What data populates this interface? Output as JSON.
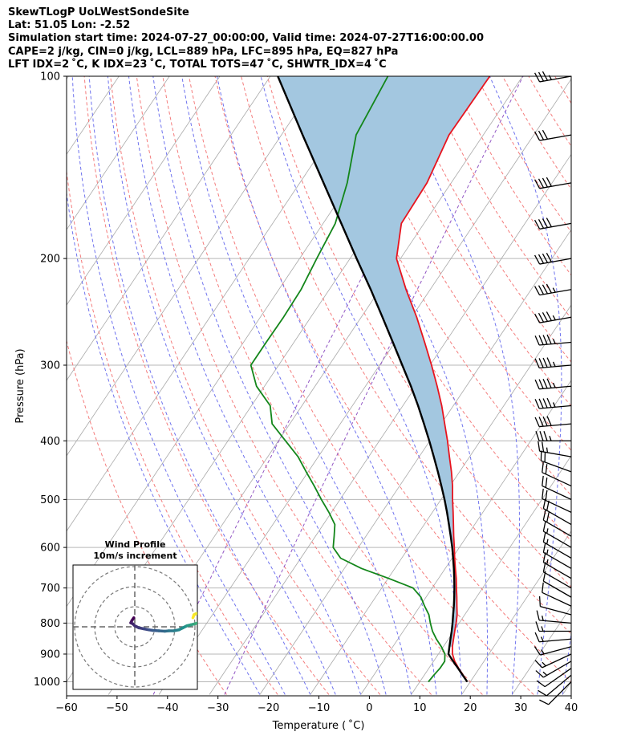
{
  "header": {
    "line1": "SkewTLogP UoLWestSondeSite",
    "line2": "Lat: 51.05   Lon: -2.52",
    "line3": "Simulation start time: 2024-07-27_00:00:00, Valid time: 2024-07-27T16:00:00.00",
    "line4": "CAPE=2 j/kg, CIN=0 j/kg, LCL=889 hPa, LFC=895 hPa, EQ=827 hPa",
    "line5": "LFT IDX=2 ˚C, K IDX=23 ˚C, TOTAL TOTS=47 ˚C, SHWTR_IDX=4 ˚C"
  },
  "chart_data": {
    "type": "skew-t log-p",
    "xlabel": "Temperature ( ˚C)",
    "ylabel": "Pressure (hPa)",
    "xlim": [
      -60,
      40
    ],
    "ylim": [
      1050,
      100
    ],
    "x_ticks": [
      "−60",
      "−50",
      "−40",
      "−30",
      "−20",
      "−10",
      "0",
      "10",
      "20",
      "30",
      "40"
    ],
    "y_ticks": [
      "100",
      "200",
      "300",
      "400",
      "500",
      "600",
      "700",
      "800",
      "900",
      "1000"
    ],
    "temperature": {
      "color": "#e8141e",
      "points": [
        [
          19.4,
          1000
        ],
        [
          17.7,
          975
        ],
        [
          15.9,
          950
        ],
        [
          14.2,
          925
        ],
        [
          12.8,
          900
        ],
        [
          11.8,
          875
        ],
        [
          11.0,
          850
        ],
        [
          10.2,
          825
        ],
        [
          9.4,
          800
        ],
        [
          8.5,
          775
        ],
        [
          7.3,
          750
        ],
        [
          6.1,
          725
        ],
        [
          4.8,
          700
        ],
        [
          3.5,
          675
        ],
        [
          2.0,
          650
        ],
        [
          0.5,
          625
        ],
        [
          -1.0,
          600
        ],
        [
          -2.6,
          575
        ],
        [
          -4.2,
          550
        ],
        [
          -5.9,
          525
        ],
        [
          -7.7,
          500
        ],
        [
          -9.5,
          475
        ],
        [
          -11.6,
          450
        ],
        [
          -14.0,
          425
        ],
        [
          -16.5,
          400
        ],
        [
          -19.3,
          375
        ],
        [
          -22.3,
          350
        ],
        [
          -25.8,
          325
        ],
        [
          -29.7,
          300
        ],
        [
          -34.1,
          275
        ],
        [
          -39.0,
          250
        ],
        [
          -44.8,
          225
        ],
        [
          -50.8,
          200
        ],
        [
          -54.5,
          175
        ],
        [
          -54.8,
          150
        ],
        [
          -56.8,
          125
        ],
        [
          -56.5,
          100
        ]
      ]
    },
    "dewpoint": {
      "color": "#13861a",
      "points": [
        [
          11.7,
          1000
        ],
        [
          11.9,
          975
        ],
        [
          12.2,
          950
        ],
        [
          12.2,
          925
        ],
        [
          11.3,
          900
        ],
        [
          9.6,
          875
        ],
        [
          7.6,
          850
        ],
        [
          5.8,
          825
        ],
        [
          4.3,
          800
        ],
        [
          2.9,
          775
        ],
        [
          0.9,
          750
        ],
        [
          -1.0,
          725
        ],
        [
          -3.8,
          700
        ],
        [
          -9.9,
          675
        ],
        [
          -16.6,
          650
        ],
        [
          -22.1,
          625
        ],
        [
          -25.0,
          600
        ],
        [
          -26.3,
          575
        ],
        [
          -27.7,
          550
        ],
        [
          -30.5,
          525
        ],
        [
          -33.7,
          500
        ],
        [
          -36.9,
          475
        ],
        [
          -40.4,
          450
        ],
        [
          -44.0,
          425
        ],
        [
          -48.6,
          400
        ],
        [
          -53.5,
          375
        ],
        [
          -56.3,
          350
        ],
        [
          -61.6,
          325
        ],
        [
          -65.5,
          300
        ],
        [
          -65.5,
          275
        ],
        [
          -65.4,
          250
        ],
        [
          -65.6,
          225
        ],
        [
          -66.6,
          200
        ],
        [
          -67.6,
          175
        ],
        [
          -70.6,
          150
        ],
        [
          -75.2,
          125
        ],
        [
          -76.7,
          100
        ]
      ]
    },
    "parcel": {
      "color": "#000000",
      "points": [
        [
          19.4,
          1000
        ],
        [
          17.6,
          975
        ],
        [
          15.8,
          950
        ],
        [
          13.9,
          925
        ],
        [
          12.0,
          900
        ],
        [
          11.2,
          875
        ],
        [
          10.4,
          850
        ],
        [
          9.6,
          825
        ],
        [
          8.7,
          800
        ],
        [
          7.7,
          775
        ],
        [
          6.7,
          750
        ],
        [
          5.6,
          725
        ],
        [
          4.4,
          700
        ],
        [
          3.1,
          675
        ],
        [
          1.7,
          650
        ],
        [
          0.2,
          625
        ],
        [
          -1.4,
          600
        ],
        [
          -3.2,
          575
        ],
        [
          -5.1,
          550
        ],
        [
          -7.1,
          525
        ],
        [
          -9.3,
          500
        ],
        [
          -11.7,
          475
        ],
        [
          -14.3,
          450
        ],
        [
          -17.1,
          425
        ],
        [
          -20.1,
          400
        ],
        [
          -23.4,
          375
        ],
        [
          -27.0,
          350
        ],
        [
          -31.0,
          325
        ],
        [
          -35.5,
          300
        ],
        [
          -40.4,
          275
        ],
        [
          -45.8,
          250
        ],
        [
          -51.8,
          225
        ],
        [
          -58.7,
          200
        ],
        [
          -66.4,
          175
        ],
        [
          -75.3,
          150
        ],
        [
          -85.8,
          125
        ],
        [
          -98.5,
          100
        ]
      ]
    },
    "colors": {
      "cape_fill": "#a3c7e0",
      "isotherm": "#a9a9a9",
      "dry_adiabat": "#f47c7c",
      "moist_adiabat": "#6f73ee",
      "mixing_ratio": "#9256c4",
      "grid": "#b7b7b7"
    },
    "wind_barbs": [
      {
        "p": 100,
        "speed_kt": 35,
        "dir_deg": 260
      },
      {
        "p": 125,
        "speed_kt": 30,
        "dir_deg": 260
      },
      {
        "p": 150,
        "speed_kt": 40,
        "dir_deg": 260
      },
      {
        "p": 175,
        "speed_kt": 40,
        "dir_deg": 260
      },
      {
        "p": 200,
        "speed_kt": 40,
        "dir_deg": 260
      },
      {
        "p": 225,
        "speed_kt": 45,
        "dir_deg": 260
      },
      {
        "p": 250,
        "speed_kt": 45,
        "dir_deg": 260
      },
      {
        "p": 275,
        "speed_kt": 45,
        "dir_deg": 265
      },
      {
        "p": 300,
        "speed_kt": 45,
        "dir_deg": 265
      },
      {
        "p": 325,
        "speed_kt": 45,
        "dir_deg": 265
      },
      {
        "p": 350,
        "speed_kt": 45,
        "dir_deg": 265
      },
      {
        "p": 375,
        "speed_kt": 40,
        "dir_deg": 265
      },
      {
        "p": 400,
        "speed_kt": 35,
        "dir_deg": 270
      },
      {
        "p": 425,
        "speed_kt": 25,
        "dir_deg": 280
      },
      {
        "p": 450,
        "speed_kt": 20,
        "dir_deg": 290
      },
      {
        "p": 475,
        "speed_kt": 20,
        "dir_deg": 295
      },
      {
        "p": 500,
        "speed_kt": 20,
        "dir_deg": 295
      },
      {
        "p": 525,
        "speed_kt": 20,
        "dir_deg": 295
      },
      {
        "p": 550,
        "speed_kt": 20,
        "dir_deg": 300
      },
      {
        "p": 575,
        "speed_kt": 20,
        "dir_deg": 300
      },
      {
        "p": 600,
        "speed_kt": 15,
        "dir_deg": 300
      },
      {
        "p": 625,
        "speed_kt": 15,
        "dir_deg": 300
      },
      {
        "p": 650,
        "speed_kt": 15,
        "dir_deg": 300
      },
      {
        "p": 675,
        "speed_kt": 15,
        "dir_deg": 300
      },
      {
        "p": 700,
        "speed_kt": 10,
        "dir_deg": 300
      },
      {
        "p": 725,
        "speed_kt": 10,
        "dir_deg": 300
      },
      {
        "p": 750,
        "speed_kt": 10,
        "dir_deg": 295
      },
      {
        "p": 775,
        "speed_kt": 10,
        "dir_deg": 285
      },
      {
        "p": 800,
        "speed_kt": 15,
        "dir_deg": 275
      },
      {
        "p": 825,
        "speed_kt": 15,
        "dir_deg": 270
      },
      {
        "p": 850,
        "speed_kt": 15,
        "dir_deg": 265
      },
      {
        "p": 875,
        "speed_kt": 15,
        "dir_deg": 255
      },
      {
        "p": 900,
        "speed_kt": 15,
        "dir_deg": 245
      },
      {
        "p": 925,
        "speed_kt": 15,
        "dir_deg": 240
      },
      {
        "p": 950,
        "speed_kt": 10,
        "dir_deg": 235
      },
      {
        "p": 975,
        "speed_kt": 10,
        "dir_deg": 230
      },
      {
        "p": 1000,
        "speed_kt": 10,
        "dir_deg": 225
      }
    ],
    "hodograph": {
      "title_line1": "Wind Profile",
      "title_line2": "10m/s increment",
      "rings_ms": [
        10,
        20,
        30
      ],
      "points_uv_ms": [
        [
          -0.5,
          4.5
        ],
        [
          -1.5,
          3.0
        ],
        [
          -2.0,
          2.0
        ],
        [
          -1.0,
          1.5
        ],
        [
          0.0,
          0.5
        ],
        [
          2.0,
          -0.5
        ],
        [
          4.5,
          -1.0
        ],
        [
          7.0,
          -1.5
        ],
        [
          9.0,
          -1.8
        ],
        [
          12.0,
          -2.0
        ],
        [
          15.0,
          -2.2
        ],
        [
          17.0,
          -2.0
        ],
        [
          19.5,
          -2.0
        ],
        [
          22.0,
          -1.5
        ],
        [
          24.0,
          -0.5
        ],
        [
          26.0,
          0.5
        ],
        [
          28.0,
          1.0
        ],
        [
          30.0,
          1.5
        ],
        [
          31.5,
          2.0
        ],
        [
          32.5,
          3.0
        ],
        [
          33.5,
          4.5
        ],
        [
          34.5,
          5.5
        ],
        [
          35.5,
          6.5
        ],
        [
          36.5,
          7.5
        ],
        [
          36.5,
          7.0
        ],
        [
          35.0,
          7.0
        ],
        [
          33.0,
          7.0
        ],
        [
          30.5,
          6.5
        ],
        [
          29.5,
          6.0
        ],
        [
          29.0,
          4.5
        ]
      ]
    }
  }
}
